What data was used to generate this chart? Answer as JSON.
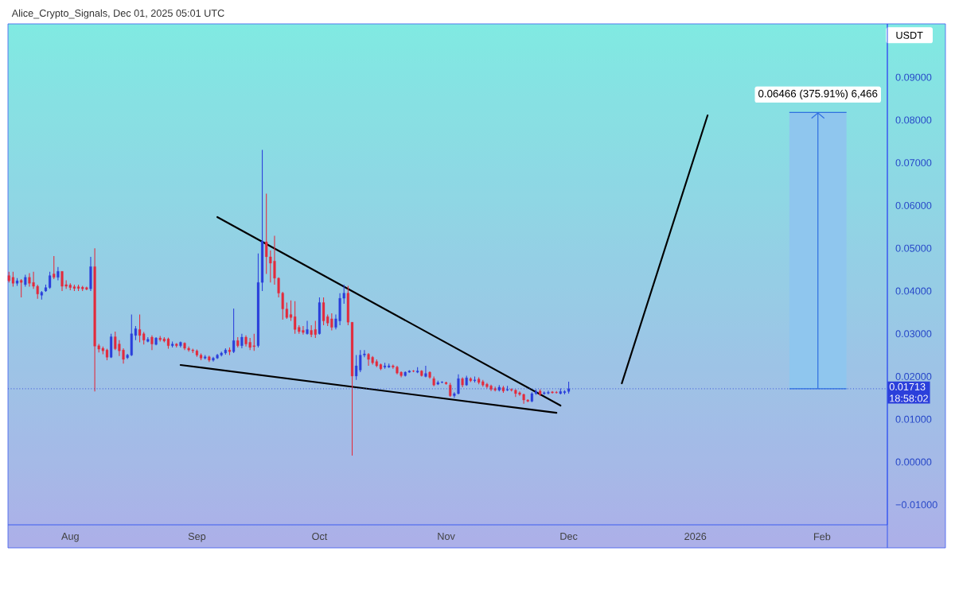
{
  "chart_data": {
    "type": "candlestick",
    "title": "Alice_Crypto_Signals, Dec 01, 2025 05:01 UTC",
    "ylabel": "USDT",
    "x": [
      "2025-07-17",
      "2025-07-18",
      "2025-07-19",
      "2025-07-20",
      "2025-07-21",
      "2025-07-22",
      "2025-07-23",
      "2025-07-24",
      "2025-07-25",
      "2025-07-26",
      "2025-07-27",
      "2025-07-28",
      "2025-07-29",
      "2025-07-30",
      "2025-07-31",
      "2025-08-01",
      "2025-08-02",
      "2025-08-03",
      "2025-08-04",
      "2025-08-05",
      "2025-08-06",
      "2025-08-07",
      "2025-08-08",
      "2025-08-09",
      "2025-08-10",
      "2025-08-11",
      "2025-08-12",
      "2025-08-13",
      "2025-08-14",
      "2025-08-15",
      "2025-08-16",
      "2025-08-17",
      "2025-08-18",
      "2025-08-19",
      "2025-08-20",
      "2025-08-21",
      "2025-08-22",
      "2025-08-23",
      "2025-08-24",
      "2025-08-25",
      "2025-08-26",
      "2025-08-27",
      "2025-08-28",
      "2025-08-29",
      "2025-08-30",
      "2025-08-31",
      "2025-09-01",
      "2025-09-02",
      "2025-09-03",
      "2025-09-04",
      "2025-09-05",
      "2025-09-06",
      "2025-09-07",
      "2025-09-08",
      "2025-09-09",
      "2025-09-10",
      "2025-09-11",
      "2025-09-12",
      "2025-09-13",
      "2025-09-14",
      "2025-09-15",
      "2025-09-16",
      "2025-09-17",
      "2025-09-18",
      "2025-09-19",
      "2025-09-20",
      "2025-09-21",
      "2025-09-22",
      "2025-09-23",
      "2025-09-24",
      "2025-09-25",
      "2025-09-26",
      "2025-09-27",
      "2025-09-28",
      "2025-09-29",
      "2025-09-30",
      "2025-10-01",
      "2025-10-02",
      "2025-10-03",
      "2025-10-04",
      "2025-10-05",
      "2025-10-06",
      "2025-10-07",
      "2025-10-08",
      "2025-10-09",
      "2025-10-10",
      "2025-10-11",
      "2025-10-12",
      "2025-10-13",
      "2025-10-14",
      "2025-10-15",
      "2025-10-16",
      "2025-10-17",
      "2025-10-18",
      "2025-10-19",
      "2025-10-20",
      "2025-10-21",
      "2025-10-22",
      "2025-10-23",
      "2025-10-24",
      "2025-10-25",
      "2025-10-26",
      "2025-10-27",
      "2025-10-28",
      "2025-10-29",
      "2025-10-30",
      "2025-10-31",
      "2025-11-01",
      "2025-11-02",
      "2025-11-03",
      "2025-11-04",
      "2025-11-05",
      "2025-11-06",
      "2025-11-07",
      "2025-11-08",
      "2025-11-09",
      "2025-11-10",
      "2025-11-11",
      "2025-11-12",
      "2025-11-13",
      "2025-11-14",
      "2025-11-15",
      "2025-11-16",
      "2025-11-17",
      "2025-11-18",
      "2025-11-19",
      "2025-11-20",
      "2025-11-21",
      "2025-11-22",
      "2025-11-23",
      "2025-11-24",
      "2025-11-25",
      "2025-11-26",
      "2025-11-27",
      "2025-11-28",
      "2025-11-29",
      "2025-11-30",
      "2025-12-01"
    ],
    "ohlc": [
      [
        0.0436,
        0.0445,
        0.042,
        0.0424
      ],
      [
        0.0432,
        0.0445,
        0.041,
        0.0418
      ],
      [
        0.0418,
        0.043,
        0.0412,
        0.0424
      ],
      [
        0.0425,
        0.0428,
        0.0385,
        0.042
      ],
      [
        0.0415,
        0.0438,
        0.041,
        0.0432
      ],
      [
        0.0432,
        0.0442,
        0.041,
        0.0418
      ],
      [
        0.042,
        0.0445,
        0.0405,
        0.0411
      ],
      [
        0.0411,
        0.0415,
        0.0382,
        0.0393
      ],
      [
        0.039,
        0.04,
        0.038,
        0.0397
      ],
      [
        0.04,
        0.0415,
        0.0398,
        0.0408
      ],
      [
        0.0408,
        0.0445,
        0.0405,
        0.0436
      ],
      [
        0.044,
        0.0482,
        0.0428,
        0.0432
      ],
      [
        0.0432,
        0.0456,
        0.0425,
        0.0446
      ],
      [
        0.0446,
        0.0446,
        0.04,
        0.0411
      ],
      [
        0.0415,
        0.0425,
        0.0405,
        0.0411
      ],
      [
        0.0414,
        0.0418,
        0.0402,
        0.0408
      ],
      [
        0.041,
        0.0415,
        0.04,
        0.0406
      ],
      [
        0.041,
        0.0415,
        0.04,
        0.0406
      ],
      [
        0.0409,
        0.0412,
        0.04,
        0.0405
      ],
      [
        0.0408,
        0.041,
        0.0402,
        0.0404
      ],
      [
        0.0405,
        0.048,
        0.04,
        0.0457
      ],
      [
        0.0457,
        0.05,
        0.0165,
        0.0271
      ],
      [
        0.0272,
        0.0276,
        0.0256,
        0.0264
      ],
      [
        0.0266,
        0.027,
        0.0252,
        0.026
      ],
      [
        0.0262,
        0.0265,
        0.0238,
        0.0245
      ],
      [
        0.0245,
        0.03,
        0.0243,
        0.0293
      ],
      [
        0.0293,
        0.0305,
        0.0262,
        0.0265
      ],
      [
        0.0276,
        0.0285,
        0.0248,
        0.026
      ],
      [
        0.0262,
        0.0266,
        0.023,
        0.024
      ],
      [
        0.0244,
        0.0253,
        0.0241,
        0.025
      ],
      [
        0.025,
        0.0345,
        0.0248,
        0.03
      ],
      [
        0.0296,
        0.0318,
        0.0285,
        0.0312
      ],
      [
        0.031,
        0.0345,
        0.028,
        0.0296
      ],
      [
        0.03,
        0.0304,
        0.0275,
        0.0285
      ],
      [
        0.0282,
        0.0292,
        0.028,
        0.0287
      ],
      [
        0.0292,
        0.0296,
        0.0262,
        0.0276
      ],
      [
        0.0275,
        0.0292,
        0.0273,
        0.029
      ],
      [
        0.029,
        0.0295,
        0.0282,
        0.0286
      ],
      [
        0.0288,
        0.0292,
        0.028,
        0.0283
      ],
      [
        0.0288,
        0.0291,
        0.0265,
        0.0272
      ],
      [
        0.0272,
        0.0282,
        0.0268,
        0.0276
      ],
      [
        0.0276,
        0.0278,
        0.0268,
        0.0272
      ],
      [
        0.0272,
        0.0282,
        0.0268,
        0.028
      ],
      [
        0.0278,
        0.028,
        0.0262,
        0.0266
      ],
      [
        0.0266,
        0.027,
        0.0258,
        0.0262
      ],
      [
        0.0262,
        0.0265,
        0.0255,
        0.026
      ],
      [
        0.026,
        0.0263,
        0.0246,
        0.025
      ],
      [
        0.025,
        0.0254,
        0.0238,
        0.0243
      ],
      [
        0.0243,
        0.025,
        0.024,
        0.0246
      ],
      [
        0.0246,
        0.0249,
        0.0234,
        0.0238
      ],
      [
        0.0238,
        0.0246,
        0.0235,
        0.0243
      ],
      [
        0.0243,
        0.0253,
        0.0241,
        0.025
      ],
      [
        0.025,
        0.0258,
        0.0247,
        0.0255
      ],
      [
        0.0255,
        0.0266,
        0.0251,
        0.0262
      ],
      [
        0.0262,
        0.0268,
        0.025,
        0.0258
      ],
      [
        0.0258,
        0.0359,
        0.0255,
        0.0284
      ],
      [
        0.0284,
        0.0292,
        0.0268,
        0.0272
      ],
      [
        0.0272,
        0.03,
        0.0266,
        0.0292
      ],
      [
        0.0292,
        0.0296,
        0.027,
        0.0276
      ],
      [
        0.028,
        0.029,
        0.0262,
        0.0268
      ],
      [
        0.0272,
        0.03,
        0.026,
        0.027
      ],
      [
        0.0272,
        0.0488,
        0.0268,
        0.042
      ],
      [
        0.042,
        0.073,
        0.04,
        0.0517
      ],
      [
        0.0515,
        0.0628,
        0.044,
        0.048
      ],
      [
        0.048,
        0.0495,
        0.042,
        0.0465
      ],
      [
        0.047,
        0.0529,
        0.0415,
        0.043
      ],
      [
        0.043,
        0.0432,
        0.0385,
        0.0395
      ],
      [
        0.0395,
        0.0398,
        0.0333,
        0.0358
      ],
      [
        0.0358,
        0.0373,
        0.0335,
        0.0338
      ],
      [
        0.0345,
        0.0378,
        0.033,
        0.0338
      ],
      [
        0.034,
        0.0376,
        0.03,
        0.031
      ],
      [
        0.0315,
        0.032,
        0.03,
        0.0305
      ],
      [
        0.0308,
        0.0318,
        0.0298,
        0.0303
      ],
      [
        0.03,
        0.033,
        0.0298,
        0.031
      ],
      [
        0.0308,
        0.032,
        0.0292,
        0.0298
      ],
      [
        0.031,
        0.033,
        0.029,
        0.0298
      ],
      [
        0.03,
        0.0385,
        0.0298,
        0.0373
      ],
      [
        0.0373,
        0.0385,
        0.032,
        0.033
      ],
      [
        0.034,
        0.0345,
        0.0318,
        0.0325
      ],
      [
        0.0335,
        0.0348,
        0.0308,
        0.0315
      ],
      [
        0.0315,
        0.0345,
        0.031,
        0.0335
      ],
      [
        0.033,
        0.0395,
        0.032,
        0.0383
      ],
      [
        0.0383,
        0.0415,
        0.037,
        0.0395
      ],
      [
        0.0395,
        0.0412,
        0.032,
        0.0327
      ],
      [
        0.0327,
        0.0327,
        0.0015,
        0.0201
      ],
      [
        0.0201,
        0.025,
        0.0192,
        0.0225
      ],
      [
        0.0215,
        0.0262,
        0.021,
        0.025
      ],
      [
        0.025,
        0.0262,
        0.0245,
        0.0253
      ],
      [
        0.0252,
        0.0255,
        0.0225,
        0.024
      ],
      [
        0.0245,
        0.0248,
        0.0228,
        0.0232
      ],
      [
        0.0235,
        0.024,
        0.0222,
        0.0225
      ],
      [
        0.0228,
        0.023,
        0.0215,
        0.0218
      ],
      [
        0.0222,
        0.0232,
        0.0218,
        0.0225
      ],
      [
        0.0222,
        0.023,
        0.022,
        0.0225
      ],
      [
        0.0225,
        0.0228,
        0.0218,
        0.0222
      ],
      [
        0.0222,
        0.0225,
        0.0205,
        0.0208
      ],
      [
        0.021,
        0.0212,
        0.0198,
        0.0202
      ],
      [
        0.0202,
        0.0212,
        0.02,
        0.021
      ],
      [
        0.021,
        0.0215,
        0.0209,
        0.0213
      ],
      [
        0.0213,
        0.0215,
        0.021,
        0.0212
      ],
      [
        0.021,
        0.0222,
        0.0208,
        0.0213
      ],
      [
        0.0213,
        0.0215,
        0.02,
        0.0202
      ],
      [
        0.02,
        0.0225,
        0.0198,
        0.0207
      ],
      [
        0.021,
        0.0212,
        0.0195,
        0.0198
      ],
      [
        0.0195,
        0.02,
        0.0177,
        0.018
      ],
      [
        0.0182,
        0.019,
        0.018,
        0.0186
      ],
      [
        0.0186,
        0.0189,
        0.0184,
        0.0187
      ],
      [
        0.0186,
        0.0188,
        0.0181,
        0.0183
      ],
      [
        0.018,
        0.0185,
        0.0152,
        0.0155
      ],
      [
        0.0155,
        0.0163,
        0.015,
        0.016
      ],
      [
        0.016,
        0.0205,
        0.0158,
        0.0195
      ],
      [
        0.0195,
        0.0198,
        0.0175,
        0.018
      ],
      [
        0.018,
        0.0202,
        0.0178,
        0.0197
      ],
      [
        0.0195,
        0.0198,
        0.0187,
        0.019
      ],
      [
        0.019,
        0.02,
        0.0186,
        0.0192
      ],
      [
        0.0194,
        0.0198,
        0.0182,
        0.0186
      ],
      [
        0.0188,
        0.0192,
        0.0176,
        0.018
      ],
      [
        0.0182,
        0.0185,
        0.0172,
        0.0176
      ],
      [
        0.0178,
        0.0181,
        0.0166,
        0.017
      ],
      [
        0.0172,
        0.0176,
        0.0165,
        0.0168
      ],
      [
        0.0168,
        0.018,
        0.0165,
        0.0175
      ],
      [
        0.0174,
        0.0178,
        0.0162,
        0.0166
      ],
      [
        0.0168,
        0.0178,
        0.0166,
        0.017
      ],
      [
        0.017,
        0.0172,
        0.0165,
        0.0168
      ],
      [
        0.0168,
        0.017,
        0.0152,
        0.016
      ],
      [
        0.0162,
        0.0165,
        0.0155,
        0.0158
      ],
      [
        0.0158,
        0.016,
        0.0136,
        0.0145
      ],
      [
        0.0145,
        0.0147,
        0.014,
        0.0142
      ],
      [
        0.0142,
        0.0163,
        0.014,
        0.016
      ],
      [
        0.016,
        0.017,
        0.0157,
        0.0165
      ],
      [
        0.0166,
        0.017,
        0.0155,
        0.0158
      ],
      [
        0.016,
        0.0165,
        0.0157,
        0.0162
      ],
      [
        0.0161,
        0.0167,
        0.0158,
        0.0163
      ],
      [
        0.0164,
        0.0166,
        0.016,
        0.0162
      ],
      [
        0.0163,
        0.0166,
        0.016,
        0.0162
      ],
      [
        0.016,
        0.0172,
        0.0158,
        0.0165
      ],
      [
        0.0162,
        0.0168,
        0.0158,
        0.0165
      ],
      [
        0.0165,
        0.0188,
        0.016,
        0.01713
      ]
    ],
    "series": [
      {
        "type": "line",
        "color": "#000000",
        "x": [
          "2025-09-06",
          "2025-11-29"
        ],
        "values": [
          0.0573,
          0.0132
        ]
      },
      {
        "type": "line",
        "color": "#000000",
        "x": [
          "2025-08-28",
          "2025-11-28"
        ],
        "values": [
          0.0227,
          0.0115
        ]
      },
      {
        "type": "line",
        "color": "#000000",
        "x": [
          "2025-12-14",
          "2026-01-04"
        ],
        "values": [
          0.0184,
          0.0811
        ]
      },
      {
        "type": "bar",
        "color": "#8fc6ee",
        "x": [
          "2026-01-31"
        ],
        "base": [
          0.01713
        ],
        "values": [
          0.06466
        ]
      }
    ],
    "xlim": [
      "2025-07-16T18:00",
      "2026-02-17"
    ],
    "xticks": [
      {
        "value": "2025-08-01",
        "label": "Aug"
      },
      {
        "value": "2025-09-01",
        "label": "Sep"
      },
      {
        "value": "2025-10-01",
        "label": "Oct"
      },
      {
        "value": "2025-11-01",
        "label": "Nov"
      },
      {
        "value": "2025-12-01",
        "label": "Dec"
      },
      {
        "value": "2026-01-01",
        "label": "2026"
      },
      {
        "value": "2026-02-01",
        "label": "Feb"
      }
    ],
    "ylim": [
      -0.0147,
      0.1025
    ],
    "yticks": [
      {
        "value": -0.01,
        "label": "−0.01000"
      },
      {
        "value": 0,
        "label": "0.00000"
      },
      {
        "value": 0.01,
        "label": "0.01000"
      },
      {
        "value": 0.02,
        "label": "0.02000"
      },
      {
        "value": 0.03,
        "label": "0.03000"
      },
      {
        "value": 0.04,
        "label": "0.04000"
      },
      {
        "value": 0.05,
        "label": "0.05000"
      },
      {
        "value": 0.06,
        "label": "0.06000"
      },
      {
        "value": 0.07,
        "label": "0.07000"
      },
      {
        "value": 0.08,
        "label": "0.08000"
      },
      {
        "value": 0.09,
        "label": "0.09000"
      }
    ],
    "ref_lines": [
      {
        "axis": "y",
        "value": 0.01713,
        "label": "0.01713",
        "color": "#2b3fdb",
        "line_style": "dotted"
      }
    ],
    "annotations": [
      {
        "text": "0.06466 (375.91%) 6,466",
        "x": "2026-01-31",
        "y": 0.08179
      },
      "18:58:02"
    ]
  }
}
